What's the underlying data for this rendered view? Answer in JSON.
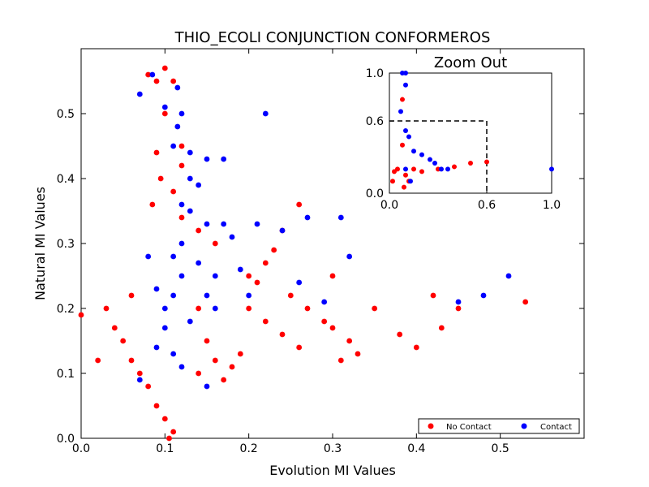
{
  "chart_data": {
    "type": "scatter",
    "title": "THIO_ECOLI CONJUNCTION CONFORMEROS",
    "xlabel": "Evolution MI Values",
    "ylabel": "Natural MI Values",
    "xlim": [
      0.0,
      0.6
    ],
    "ylim": [
      0.0,
      0.6
    ],
    "xticks": [
      "0.0",
      "0.1",
      "0.2",
      "0.3",
      "0.4",
      "0.5"
    ],
    "yticks": [
      "0.0",
      "0.1",
      "0.2",
      "0.3",
      "0.4",
      "0.5"
    ],
    "grid": false,
    "legend": {
      "location": "lower-right",
      "entries": [
        {
          "label": "No Contact",
          "color": "#ff0000"
        },
        {
          "label": "Contact",
          "color": "#0000ff"
        }
      ]
    },
    "series": [
      {
        "name": "No Contact",
        "color": "#ff0000",
        "points": [
          [
            0.0,
            0.19
          ],
          [
            0.02,
            0.12
          ],
          [
            0.03,
            0.2
          ],
          [
            0.04,
            0.17
          ],
          [
            0.05,
            0.15
          ],
          [
            0.06,
            0.12
          ],
          [
            0.06,
            0.22
          ],
          [
            0.07,
            0.1
          ],
          [
            0.08,
            0.08
          ],
          [
            0.08,
            0.56
          ],
          [
            0.09,
            0.05
          ],
          [
            0.09,
            0.55
          ],
          [
            0.1,
            0.03
          ],
          [
            0.1,
            0.57
          ],
          [
            0.11,
            0.01
          ],
          [
            0.11,
            0.55
          ],
          [
            0.105,
            0.0
          ],
          [
            0.1,
            0.5
          ],
          [
            0.09,
            0.44
          ],
          [
            0.12,
            0.45
          ],
          [
            0.12,
            0.42
          ],
          [
            0.11,
            0.38
          ],
          [
            0.095,
            0.4
          ],
          [
            0.085,
            0.36
          ],
          [
            0.12,
            0.34
          ],
          [
            0.14,
            0.32
          ],
          [
            0.16,
            0.3
          ],
          [
            0.2,
            0.25
          ],
          [
            0.21,
            0.24
          ],
          [
            0.23,
            0.29
          ],
          [
            0.24,
            0.32
          ],
          [
            0.26,
            0.36
          ],
          [
            0.22,
            0.27
          ],
          [
            0.25,
            0.22
          ],
          [
            0.27,
            0.2
          ],
          [
            0.29,
            0.18
          ],
          [
            0.3,
            0.17
          ],
          [
            0.32,
            0.15
          ],
          [
            0.33,
            0.13
          ],
          [
            0.35,
            0.2
          ],
          [
            0.38,
            0.16
          ],
          [
            0.4,
            0.14
          ],
          [
            0.42,
            0.22
          ],
          [
            0.43,
            0.17
          ],
          [
            0.45,
            0.2
          ],
          [
            0.53,
            0.21
          ],
          [
            0.3,
            0.25
          ],
          [
            0.31,
            0.12
          ],
          [
            0.26,
            0.14
          ],
          [
            0.24,
            0.16
          ],
          [
            0.22,
            0.18
          ],
          [
            0.2,
            0.2
          ],
          [
            0.19,
            0.13
          ],
          [
            0.18,
            0.11
          ],
          [
            0.17,
            0.09
          ],
          [
            0.16,
            0.12
          ],
          [
            0.15,
            0.15
          ],
          [
            0.14,
            0.1
          ],
          [
            0.14,
            0.2
          ]
        ]
      },
      {
        "name": "Contact",
        "color": "#0000ff",
        "points": [
          [
            0.07,
            0.53
          ],
          [
            0.085,
            0.56
          ],
          [
            0.1,
            0.51
          ],
          [
            0.115,
            0.54
          ],
          [
            0.12,
            0.5
          ],
          [
            0.115,
            0.48
          ],
          [
            0.11,
            0.45
          ],
          [
            0.13,
            0.44
          ],
          [
            0.15,
            0.43
          ],
          [
            0.17,
            0.43
          ],
          [
            0.13,
            0.4
          ],
          [
            0.14,
            0.39
          ],
          [
            0.12,
            0.36
          ],
          [
            0.13,
            0.35
          ],
          [
            0.15,
            0.33
          ],
          [
            0.17,
            0.33
          ],
          [
            0.18,
            0.31
          ],
          [
            0.21,
            0.33
          ],
          [
            0.22,
            0.5
          ],
          [
            0.24,
            0.32
          ],
          [
            0.27,
            0.34
          ],
          [
            0.31,
            0.34
          ],
          [
            0.32,
            0.28
          ],
          [
            0.19,
            0.26
          ],
          [
            0.16,
            0.25
          ],
          [
            0.15,
            0.22
          ],
          [
            0.2,
            0.22
          ],
          [
            0.26,
            0.24
          ],
          [
            0.29,
            0.21
          ],
          [
            0.12,
            0.3
          ],
          [
            0.12,
            0.25
          ],
          [
            0.11,
            0.22
          ],
          [
            0.13,
            0.18
          ],
          [
            0.1,
            0.2
          ],
          [
            0.1,
            0.17
          ],
          [
            0.09,
            0.14
          ],
          [
            0.11,
            0.13
          ],
          [
            0.12,
            0.11
          ],
          [
            0.15,
            0.08
          ],
          [
            0.07,
            0.09
          ],
          [
            0.09,
            0.23
          ],
          [
            0.08,
            0.28
          ],
          [
            0.11,
            0.28
          ],
          [
            0.14,
            0.27
          ],
          [
            0.16,
            0.2
          ],
          [
            0.45,
            0.21
          ],
          [
            0.48,
            0.22
          ],
          [
            0.51,
            0.25
          ]
        ]
      }
    ],
    "inset": {
      "title": "Zoom Out",
      "xlim": [
        0.0,
        1.0
      ],
      "ylim": [
        0.0,
        1.0
      ],
      "xticks": [
        "0.0",
        "0.6",
        "1.0"
      ],
      "yticks": [
        "0.0",
        "0.6",
        "1.0"
      ],
      "zoom_box": {
        "x": [
          0.0,
          0.6
        ],
        "y": [
          0.0,
          0.6
        ]
      },
      "series": [
        {
          "name": "No Contact",
          "color": "#ff0000",
          "points": [
            [
              0.08,
              0.78
            ],
            [
              0.05,
              0.2
            ],
            [
              0.1,
              0.15
            ],
            [
              0.12,
              0.1
            ],
            [
              0.15,
              0.2
            ],
            [
              0.2,
              0.18
            ],
            [
              0.3,
              0.2
            ],
            [
              0.4,
              0.22
            ],
            [
              0.5,
              0.25
            ],
            [
              0.6,
              0.26
            ],
            [
              0.03,
              0.18
            ],
            [
              0.02,
              0.1
            ],
            [
              0.09,
              0.05
            ],
            [
              0.08,
              0.4
            ]
          ]
        },
        {
          "name": "Contact",
          "color": "#0000ff",
          "points": [
            [
              0.1,
              1.0
            ],
            [
              0.08,
              1.0
            ],
            [
              0.1,
              0.9
            ],
            [
              0.07,
              0.68
            ],
            [
              0.1,
              0.52
            ],
            [
              0.12,
              0.47
            ],
            [
              0.15,
              0.35
            ],
            [
              0.2,
              0.32
            ],
            [
              0.25,
              0.28
            ],
            [
              0.28,
              0.25
            ],
            [
              0.32,
              0.2
            ],
            [
              0.36,
              0.2
            ],
            [
              1.0,
              0.2
            ],
            [
              0.1,
              0.2
            ],
            [
              0.13,
              0.1
            ]
          ]
        }
      ]
    }
  }
}
